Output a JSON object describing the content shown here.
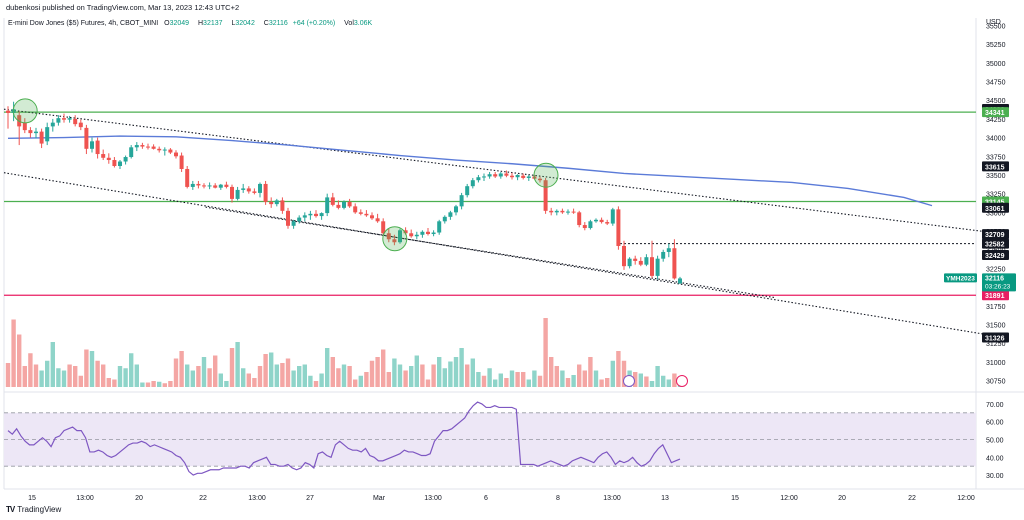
{
  "publisher_line": "dubenkosi published on TradingView.com, Mar 13, 2023 12:43 UTC+2",
  "info": {
    "symbol": "E-mini Dow Jones ($5) Futures, 4h, CBOT_MINI",
    "open_label": "O",
    "open": "32049",
    "high_label": "H",
    "high": "32137",
    "low_label": "L",
    "low": "32042",
    "close_label": "C",
    "close": "32116",
    "change": "+64 (+0.20%)",
    "vol_label": "Vol",
    "vol": "3.06K"
  },
  "currency": "USD",
  "logo_text": "TradingView",
  "colors": {
    "up": "#26a69a",
    "down": "#ef5350",
    "vol_up": "#8fd4c9",
    "vol_down": "#f4a6a4",
    "ma": "#5b7bd8",
    "green_line": "#4caf50",
    "red_line": "#e91e63",
    "rsi": "#7e57c2",
    "rsi_band": "#ede7f6",
    "badge": "#131722",
    "symbol_badge": "#089981"
  },
  "chart_data": {
    "type": "candlestick",
    "timeframe": "4h",
    "price_axis_ticks": [
      35500,
      35250,
      35000,
      34750,
      34500,
      34250,
      34000,
      33750,
      33500,
      33250,
      33000,
      32750,
      32500,
      32250,
      32000,
      31750,
      31500,
      31250,
      31000,
      30750
    ],
    "ylim": [
      30650,
      35600
    ],
    "x_labels": [
      "15",
      "13:00",
      "20",
      "22",
      "13:00",
      "27",
      "Mar",
      "13:00",
      "6",
      "8",
      "13:00",
      "13",
      "15",
      "12:00",
      "20",
      "22",
      "12:00"
    ],
    "price_badges": [
      {
        "value": "34383",
        "color": "#131722"
      },
      {
        "value": "34341",
        "color": "#4caf50"
      },
      {
        "value": "33615",
        "color": "#131722"
      },
      {
        "value": "33145",
        "color": "#4caf50"
      },
      {
        "value": "33061",
        "color": "#131722"
      },
      {
        "value": "32709",
        "color": "#131722"
      },
      {
        "value": "32582",
        "color": "#131722"
      },
      {
        "value": "32429",
        "color": "#131722"
      },
      {
        "value": "31891",
        "color": "#e91e63"
      },
      {
        "value": "31326",
        "color": "#131722"
      }
    ],
    "last_price": {
      "symbol": "YMH2023",
      "value": "32116",
      "countdown": "03:26:23"
    },
    "horizontal_levels": [
      {
        "value": 34341,
        "color": "#4caf50"
      },
      {
        "value": 33145,
        "color": "#4caf50"
      },
      {
        "value": 31891,
        "color": "#e91e63"
      },
      {
        "value": 32582,
        "color": "#131722",
        "dotted": true
      }
    ],
    "trendlines": [
      {
        "from": [
          0,
          34380
        ],
        "to": [
          177,
          32710
        ],
        "dotted": true
      },
      {
        "from": [
          0,
          33530
        ],
        "to": [
          177,
          31326
        ],
        "dotted": true
      },
      {
        "from": [
          36,
          33070
        ],
        "to": [
          136,
          31860
        ],
        "dotted": true
      }
    ],
    "candles": [
      [
        34360,
        34420,
        34120,
        34330
      ],
      [
        34330,
        34480,
        34220,
        34380
      ],
      [
        34300,
        34350,
        33900,
        34150
      ],
      [
        34200,
        34260,
        34060,
        34100
      ],
      [
        34100,
        34140,
        34000,
        34060
      ],
      [
        34060,
        34130,
        33990,
        34080
      ],
      [
        34080,
        34120,
        33860,
        33920
      ],
      [
        33950,
        34200,
        33900,
        34140
      ],
      [
        34150,
        34250,
        34080,
        34200
      ],
      [
        34200,
        34300,
        34160,
        34260
      ],
      [
        34260,
        34320,
        34200,
        34240
      ],
      [
        34240,
        34290,
        34200,
        34260
      ],
      [
        34250,
        34300,
        34150,
        34180
      ],
      [
        34200,
        34240,
        34100,
        34140
      ],
      [
        34130,
        34170,
        33780,
        33850
      ],
      [
        33850,
        34000,
        33800,
        33950
      ],
      [
        33960,
        34000,
        33720,
        33780
      ],
      [
        33780,
        33840,
        33700,
        33730
      ],
      [
        33730,
        33790,
        33650,
        33700
      ],
      [
        33700,
        33740,
        33600,
        33620
      ],
      [
        33620,
        33700,
        33580,
        33680
      ],
      [
        33680,
        33760,
        33640,
        33740
      ],
      [
        33740,
        33900,
        33720,
        33870
      ],
      [
        33870,
        33940,
        33820,
        33900
      ],
      [
        33900,
        33930,
        33850,
        33880
      ],
      [
        33880,
        33920,
        33840,
        33870
      ],
      [
        33880,
        33910,
        33840,
        33850
      ],
      [
        33850,
        33880,
        33800,
        33830
      ],
      [
        33830,
        33870,
        33760,
        33840
      ],
      [
        33840,
        33860,
        33780,
        33800
      ],
      [
        33800,
        33830,
        33720,
        33750
      ],
      [
        33760,
        33800,
        33540,
        33580
      ],
      [
        33580,
        33620,
        33320,
        33340
      ],
      [
        33340,
        33420,
        33300,
        33380
      ],
      [
        33380,
        33420,
        33320,
        33360
      ],
      [
        33360,
        33390,
        33320,
        33350
      ],
      [
        33350,
        33400,
        33310,
        33360
      ],
      [
        33360,
        33390,
        33320,
        33330
      ],
      [
        33330,
        33380,
        33300,
        33370
      ],
      [
        33370,
        33410,
        33320,
        33340
      ],
      [
        33340,
        33370,
        33130,
        33180
      ],
      [
        33180,
        33340,
        33160,
        33300
      ],
      [
        33300,
        33380,
        33260,
        33320
      ],
      [
        33320,
        33350,
        33250,
        33280
      ],
      [
        33280,
        33320,
        33240,
        33260
      ],
      [
        33260,
        33400,
        33200,
        33380
      ],
      [
        33380,
        33420,
        33100,
        33140
      ],
      [
        33140,
        33200,
        33060,
        33110
      ],
      [
        33110,
        33180,
        33080,
        33160
      ],
      [
        33160,
        33200,
        32980,
        33020
      ],
      [
        33020,
        33060,
        32780,
        32820
      ],
      [
        32820,
        32900,
        32780,
        32880
      ],
      [
        32880,
        32960,
        32850,
        32930
      ],
      [
        32930,
        33000,
        32880,
        32960
      ],
      [
        32960,
        33020,
        32900,
        32980
      ],
      [
        32980,
        33030,
        32930,
        32950
      ],
      [
        32950,
        33000,
        32900,
        32990
      ],
      [
        32990,
        33250,
        32950,
        33200
      ],
      [
        33200,
        33260,
        33080,
        33100
      ],
      [
        33100,
        33160,
        33040,
        33060
      ],
      [
        33060,
        33160,
        33040,
        33140
      ],
      [
        33140,
        33180,
        33060,
        33080
      ],
      [
        33080,
        33120,
        32980,
        33000
      ],
      [
        33000,
        33040,
        32960,
        32980
      ],
      [
        32980,
        33030,
        32940,
        32960
      ],
      [
        32960,
        33000,
        32900,
        32920
      ],
      [
        32920,
        32980,
        32860,
        32880
      ],
      [
        32880,
        32920,
        32700,
        32720
      ],
      [
        32720,
        32780,
        32600,
        32640
      ],
      [
        32640,
        32700,
        32560,
        32600
      ],
      [
        32600,
        32780,
        32580,
        32760
      ],
      [
        32760,
        32800,
        32700,
        32720
      ],
      [
        32720,
        32770,
        32660,
        32680
      ],
      [
        32680,
        32740,
        32640,
        32700
      ],
      [
        32700,
        32760,
        32660,
        32740
      ],
      [
        32740,
        32790,
        32690,
        32710
      ],
      [
        32710,
        32760,
        32680,
        32730
      ],
      [
        32730,
        32900,
        32700,
        32880
      ],
      [
        32880,
        32960,
        32850,
        32940
      ],
      [
        32940,
        33020,
        32900,
        33000
      ],
      [
        33000,
        33100,
        32960,
        33080
      ],
      [
        33080,
        33260,
        33040,
        33230
      ],
      [
        33230,
        33380,
        33200,
        33350
      ],
      [
        33350,
        33460,
        33320,
        33430
      ],
      [
        33430,
        33500,
        33400,
        33470
      ],
      [
        33470,
        33520,
        33420,
        33480
      ],
      [
        33480,
        33540,
        33450,
        33510
      ],
      [
        33510,
        33540,
        33460,
        33480
      ],
      [
        33480,
        33540,
        33450,
        33520
      ],
      [
        33520,
        33560,
        33470,
        33490
      ],
      [
        33490,
        33530,
        33440,
        33470
      ],
      [
        33470,
        33510,
        33430,
        33500
      ],
      [
        33490,
        33520,
        33440,
        33460
      ],
      [
        33460,
        33500,
        33420,
        33480
      ],
      [
        33480,
        33500,
        33440,
        33450
      ],
      [
        33450,
        33480,
        33400,
        33430
      ],
      [
        33430,
        33460,
        32980,
        33020
      ],
      [
        33020,
        33060,
        32960,
        33000
      ],
      [
        33000,
        33040,
        32960,
        33020
      ],
      [
        33020,
        33050,
        32980,
        33000
      ],
      [
        33000,
        33040,
        32970,
        33010
      ],
      [
        33010,
        33050,
        32980,
        33000
      ],
      [
        33000,
        33020,
        32800,
        32830
      ],
      [
        32830,
        32870,
        32760,
        32790
      ],
      [
        32790,
        32900,
        32770,
        32880
      ],
      [
        32880,
        32920,
        32860,
        32900
      ],
      [
        32900,
        32930,
        32850,
        32870
      ],
      [
        32870,
        32900,
        32830,
        32850
      ],
      [
        32850,
        33060,
        32820,
        33040
      ],
      [
        33040,
        33080,
        32500,
        32550
      ],
      [
        32550,
        32620,
        32230,
        32280
      ],
      [
        32280,
        32400,
        32250,
        32380
      ],
      [
        32380,
        32420,
        32300,
        32350
      ],
      [
        32350,
        32400,
        32280,
        32300
      ],
      [
        32300,
        32440,
        32280,
        32400
      ],
      [
        32400,
        32620,
        32120,
        32150
      ],
      [
        32150,
        32420,
        32100,
        32380
      ],
      [
        32380,
        32500,
        32340,
        32470
      ],
      [
        32470,
        32580,
        32400,
        32520
      ],
      [
        32520,
        32640,
        32100,
        32116
      ],
      [
        32049,
        32137,
        32042,
        32116
      ]
    ],
    "volume": [
      [
        32,
        0
      ],
      [
        90,
        0
      ],
      [
        70,
        0
      ],
      [
        28,
        0
      ],
      [
        45,
        0
      ],
      [
        30,
        0
      ],
      [
        22,
        1
      ],
      [
        35,
        1
      ],
      [
        60,
        1
      ],
      [
        25,
        1
      ],
      [
        22,
        1
      ],
      [
        30,
        0
      ],
      [
        28,
        0
      ],
      [
        15,
        0
      ],
      [
        50,
        0
      ],
      [
        48,
        1
      ],
      [
        35,
        0
      ],
      [
        30,
        0
      ],
      [
        12,
        0
      ],
      [
        10,
        0
      ],
      [
        28,
        1
      ],
      [
        25,
        1
      ],
      [
        45,
        1
      ],
      [
        30,
        1
      ],
      [
        6,
        1
      ],
      [
        6,
        0
      ],
      [
        8,
        0
      ],
      [
        7,
        1
      ],
      [
        5,
        0
      ],
      [
        8,
        0
      ],
      [
        38,
        0
      ],
      [
        48,
        0
      ],
      [
        30,
        1
      ],
      [
        22,
        1
      ],
      [
        28,
        0
      ],
      [
        40,
        1
      ],
      [
        25,
        0
      ],
      [
        42,
        0
      ],
      [
        18,
        1
      ],
      [
        8,
        1
      ],
      [
        52,
        0
      ],
      [
        60,
        1
      ],
      [
        25,
        1
      ],
      [
        18,
        0
      ],
      [
        12,
        0
      ],
      [
        28,
        0
      ],
      [
        44,
        0
      ],
      [
        46,
        1
      ],
      [
        30,
        1
      ],
      [
        32,
        0
      ],
      [
        38,
        0
      ],
      [
        22,
        1
      ],
      [
        28,
        1
      ],
      [
        30,
        1
      ],
      [
        15,
        1
      ],
      [
        8,
        0
      ],
      [
        18,
        1
      ],
      [
        52,
        1
      ],
      [
        40,
        0
      ],
      [
        25,
        0
      ],
      [
        30,
        1
      ],
      [
        28,
        0
      ],
      [
        10,
        0
      ],
      [
        15,
        1
      ],
      [
        20,
        0
      ],
      [
        35,
        0
      ],
      [
        40,
        0
      ],
      [
        50,
        0
      ],
      [
        20,
        0
      ],
      [
        38,
        1
      ],
      [
        30,
        1
      ],
      [
        22,
        0
      ],
      [
        28,
        1
      ],
      [
        42,
        1
      ],
      [
        30,
        0
      ],
      [
        10,
        0
      ],
      [
        30,
        0
      ],
      [
        40,
        1
      ],
      [
        25,
        1
      ],
      [
        34,
        1
      ],
      [
        40,
        1
      ],
      [
        52,
        1
      ],
      [
        30,
        0
      ],
      [
        38,
        1
      ],
      [
        20,
        1
      ],
      [
        15,
        0
      ],
      [
        25,
        1
      ],
      [
        10,
        1
      ],
      [
        18,
        1
      ],
      [
        12,
        0
      ],
      [
        22,
        1
      ],
      [
        20,
        0
      ],
      [
        20,
        0
      ],
      [
        10,
        1
      ],
      [
        22,
        1
      ],
      [
        15,
        0
      ],
      [
        92,
        0
      ],
      [
        40,
        0
      ],
      [
        28,
        0
      ],
      [
        22,
        1
      ],
      [
        12,
        0
      ],
      [
        16,
        1
      ],
      [
        30,
        0
      ],
      [
        22,
        0
      ],
      [
        40,
        0
      ],
      [
        22,
        1
      ],
      [
        10,
        0
      ],
      [
        12,
        0
      ],
      [
        35,
        1
      ],
      [
        48,
        0
      ],
      [
        35,
        0
      ],
      [
        22,
        1
      ],
      [
        20,
        0
      ],
      [
        18,
        1
      ],
      [
        14,
        0
      ],
      [
        8,
        1
      ],
      [
        28,
        1
      ],
      [
        15,
        1
      ],
      [
        10,
        1
      ],
      [
        18,
        0
      ],
      [
        10,
        1
      ]
    ],
    "ma_points": [
      [
        0,
        33990
      ],
      [
        10,
        34000
      ],
      [
        20,
        34020
      ],
      [
        30,
        34010
      ],
      [
        40,
        33960
      ],
      [
        50,
        33900
      ],
      [
        60,
        33830
      ],
      [
        70,
        33760
      ],
      [
        80,
        33700
      ],
      [
        90,
        33650
      ],
      [
        100,
        33590
      ],
      [
        110,
        33520
      ],
      [
        120,
        33480
      ],
      [
        130,
        33440
      ],
      [
        140,
        33400
      ],
      [
        150,
        33320
      ],
      [
        160,
        33200
      ],
      [
        165,
        33090
      ]
    ],
    "rsi": {
      "ticks": [
        70,
        60,
        50,
        40,
        30
      ],
      "band": [
        35,
        65
      ],
      "ylim": [
        25,
        75
      ],
      "values": [
        55,
        53,
        56,
        52,
        49,
        47,
        47,
        49,
        51,
        49,
        46,
        51,
        52,
        55,
        56,
        57,
        55,
        55,
        51,
        43,
        43,
        44,
        43,
        41,
        40,
        41,
        43,
        45,
        47,
        48,
        48,
        49,
        48,
        46,
        47,
        46,
        45,
        44,
        43,
        41,
        40,
        37,
        32,
        30,
        31,
        31,
        32,
        33,
        33,
        33,
        34,
        34,
        34,
        34,
        35,
        35,
        34,
        37,
        38,
        39,
        40,
        36,
        36,
        35,
        35,
        36,
        34,
        33,
        34,
        37,
        36,
        34,
        42,
        43,
        41,
        40,
        47,
        49,
        47,
        45,
        44,
        44,
        43,
        45,
        41,
        40,
        38,
        38,
        39,
        40,
        41,
        42,
        44,
        43,
        43,
        42,
        41,
        41,
        42,
        49,
        52,
        55,
        55,
        56,
        58,
        60,
        62,
        66,
        69,
        71,
        70,
        68,
        68,
        69,
        68,
        68,
        68,
        68,
        67,
        36,
        36,
        36,
        36,
        35,
        36,
        37,
        38,
        37,
        36,
        35,
        36,
        38,
        39,
        40,
        39,
        38,
        37,
        40,
        42,
        43,
        40,
        36,
        38,
        37,
        38,
        40,
        37,
        35,
        36,
        38,
        42,
        45,
        47,
        42,
        37,
        38,
        39
      ]
    }
  }
}
